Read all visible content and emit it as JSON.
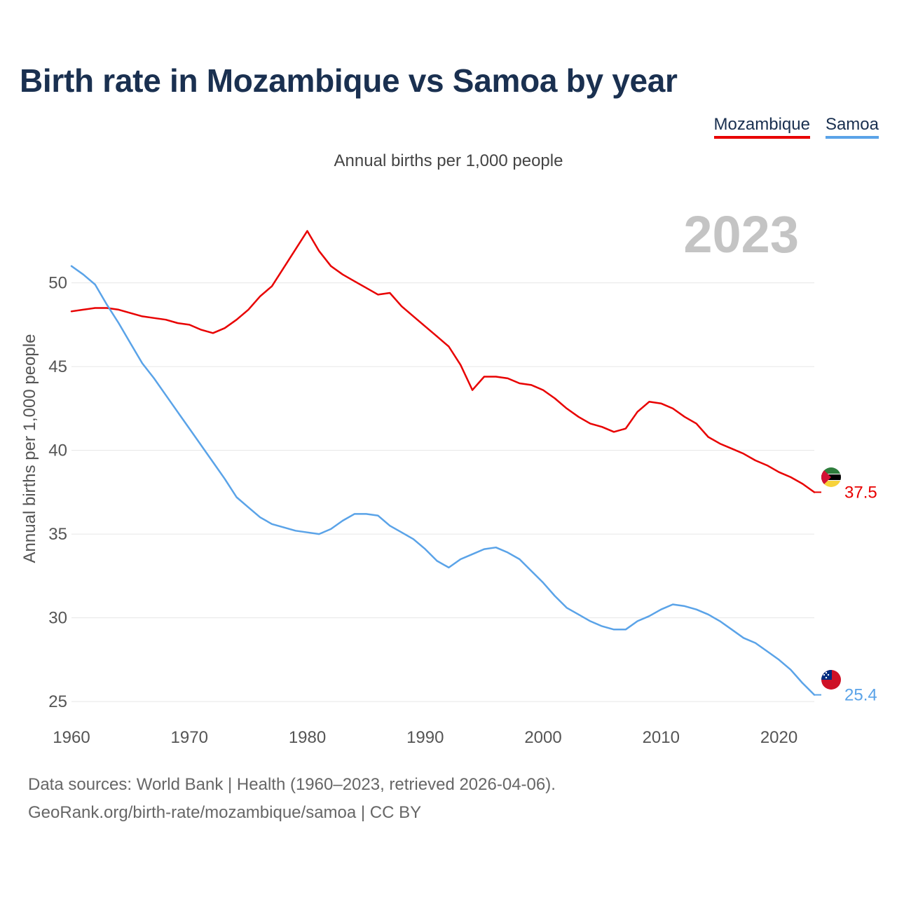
{
  "title": "Birth rate in Mozambique vs Samoa by year",
  "legend": {
    "mozambique": "Mozambique",
    "samoa": "Samoa"
  },
  "subtitle": "Annual births per 1,000 people",
  "footer": {
    "line1": "Data sources: World Bank | Health (1960–2023, retrieved 2026-04-06).",
    "line2": "GeoRank.org/birth-rate/mozambique/samoa | CC BY"
  },
  "chart_data": {
    "type": "line",
    "title": "Birth rate in Mozambique vs Samoa by year",
    "ylabel": "Annual births per 1,000 people",
    "xlabel": "",
    "year_label": "2023",
    "xlim": [
      1960,
      2023
    ],
    "ylim": [
      24,
      53.5
    ],
    "grid": true,
    "x_ticks": [
      1960,
      1970,
      1980,
      1990,
      2000,
      2010,
      2020
    ],
    "y_ticks": [
      25,
      30,
      35,
      40,
      45,
      50
    ],
    "x": [
      1960,
      1961,
      1962,
      1963,
      1964,
      1965,
      1966,
      1967,
      1968,
      1969,
      1970,
      1971,
      1972,
      1973,
      1974,
      1975,
      1976,
      1977,
      1978,
      1979,
      1980,
      1981,
      1982,
      1983,
      1984,
      1985,
      1986,
      1987,
      1988,
      1989,
      1990,
      1991,
      1992,
      1993,
      1994,
      1995,
      1996,
      1997,
      1998,
      1999,
      2000,
      2001,
      2002,
      2003,
      2004,
      2005,
      2006,
      2007,
      2008,
      2009,
      2010,
      2011,
      2012,
      2013,
      2014,
      2015,
      2016,
      2017,
      2018,
      2019,
      2020,
      2021,
      2022,
      2023
    ],
    "series": [
      {
        "name": "Mozambique",
        "color": "#e80000",
        "end_label": "37.5",
        "values": [
          48.3,
          48.4,
          48.5,
          48.5,
          48.4,
          48.2,
          48.0,
          47.9,
          47.8,
          47.6,
          47.5,
          47.2,
          47.0,
          47.3,
          47.8,
          48.4,
          49.2,
          49.8,
          50.9,
          52.0,
          53.1,
          51.9,
          51.0,
          50.5,
          50.1,
          49.7,
          49.3,
          49.4,
          48.6,
          48.0,
          47.4,
          46.8,
          46.2,
          45.1,
          43.6,
          44.4,
          44.4,
          44.3,
          44.0,
          43.9,
          43.6,
          43.1,
          42.5,
          42.0,
          41.6,
          41.4,
          41.1,
          41.3,
          42.3,
          42.9,
          42.8,
          42.5,
          42.0,
          41.6,
          40.8,
          40.4,
          40.1,
          39.8,
          39.4,
          39.1,
          38.7,
          38.4,
          38.0,
          37.5
        ]
      },
      {
        "name": "Samoa",
        "color": "#5aa3e8",
        "end_label": "25.4",
        "values": [
          51.0,
          50.5,
          49.9,
          48.7,
          47.6,
          46.4,
          45.2,
          44.3,
          43.3,
          42.3,
          41.3,
          40.3,
          39.3,
          38.3,
          37.2,
          36.6,
          36.0,
          35.6,
          35.4,
          35.2,
          35.1,
          35.0,
          35.3,
          35.8,
          36.2,
          36.2,
          36.1,
          35.5,
          35.1,
          34.7,
          34.1,
          33.4,
          33.0,
          33.5,
          33.8,
          34.1,
          34.2,
          33.9,
          33.5,
          32.8,
          32.1,
          31.3,
          30.6,
          30.2,
          29.8,
          29.5,
          29.3,
          29.3,
          29.8,
          30.1,
          30.5,
          30.8,
          30.7,
          30.5,
          30.2,
          29.8,
          29.3,
          28.8,
          28.5,
          28.0,
          27.5,
          26.9,
          26.1,
          25.4
        ]
      }
    ]
  }
}
